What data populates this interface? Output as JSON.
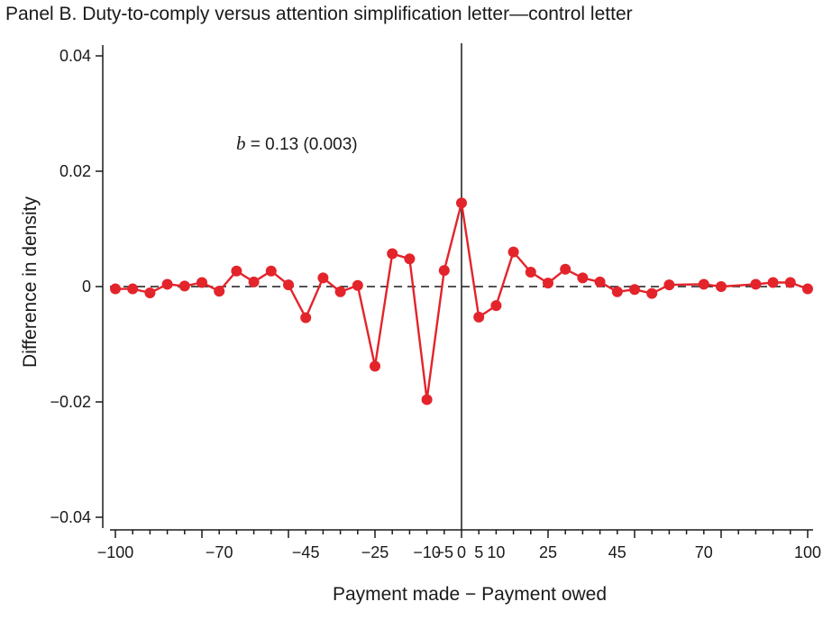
{
  "chart_data": {
    "type": "line",
    "title": "Panel B. Duty-to-comply versus attention simplification letter—control letter",
    "xlabel": "Payment made − Payment owed",
    "ylabel": "Difference in density",
    "xlim": [
      -100,
      100
    ],
    "ylim": [
      -0.04,
      0.04
    ],
    "x_ticks_labeled": [
      {
        "v": -100,
        "label": "−100"
      },
      {
        "v": -70,
        "label": "−70"
      },
      {
        "v": -45,
        "label": "−45"
      },
      {
        "v": -25,
        "label": "−25"
      },
      {
        "v": -10,
        "label": "−10"
      },
      {
        "v": -5,
        "label": "−5"
      },
      {
        "v": 0,
        "label": "0"
      },
      {
        "v": 5,
        "label": "5"
      },
      {
        "v": 10,
        "label": "10"
      },
      {
        "v": 25,
        "label": "25"
      },
      {
        "v": 45,
        "label": "45"
      },
      {
        "v": 70,
        "label": "70"
      },
      {
        "v": 100,
        "label": "100"
      }
    ],
    "y_ticks": [
      {
        "v": 0.04,
        "label": "0.04"
      },
      {
        "v": 0.02,
        "label": "0.02"
      },
      {
        "v": 0,
        "label": "0"
      },
      {
        "v": -0.02,
        "label": "−0.02"
      },
      {
        "v": -0.04,
        "label": "−0.04"
      }
    ],
    "reference_lines": {
      "vertical_at_x": 0,
      "horizontal_dashed_at_y": 0
    },
    "annotation": {
      "prefix": "b",
      "text": " = 0.13 (0.003)"
    },
    "series": [
      {
        "color": "#e3242b",
        "points": [
          [
            -100,
            -0.0004
          ],
          [
            -95,
            -0.0004
          ],
          [
            -90,
            -0.0011
          ],
          [
            -85,
            0.0004
          ],
          [
            -80,
            0.0001
          ],
          [
            -75,
            0.0007
          ],
          [
            -70,
            -0.0008
          ],
          [
            -65,
            0.0027
          ],
          [
            -60,
            0.0008
          ],
          [
            -55,
            0.0027
          ],
          [
            -50,
            0.0003
          ],
          [
            -45,
            -0.0054
          ],
          [
            -40,
            0.0015
          ],
          [
            -35,
            -0.0009
          ],
          [
            -30,
            0.0002
          ],
          [
            -25,
            -0.0138
          ],
          [
            -20,
            0.0057
          ],
          [
            -15,
            0.0048
          ],
          [
            -10,
            -0.0196
          ],
          [
            -5,
            0.0028
          ],
          [
            0,
            0.0145
          ],
          [
            5,
            -0.0053
          ],
          [
            10,
            -0.0033
          ],
          [
            15,
            0.006
          ],
          [
            20,
            0.0025
          ],
          [
            25,
            0.0006
          ],
          [
            30,
            0.003
          ],
          [
            35,
            0.0015
          ],
          [
            40,
            0.0008
          ],
          [
            45,
            -0.0009
          ],
          [
            50,
            -0.0005
          ],
          [
            55,
            -0.0012
          ],
          [
            60,
            0.0003
          ],
          [
            70,
            0.0004
          ],
          [
            75,
            0.0
          ],
          [
            85,
            0.0004
          ],
          [
            90,
            0.0007
          ],
          [
            95,
            0.0007
          ],
          [
            100,
            -0.0004
          ]
        ]
      }
    ]
  }
}
